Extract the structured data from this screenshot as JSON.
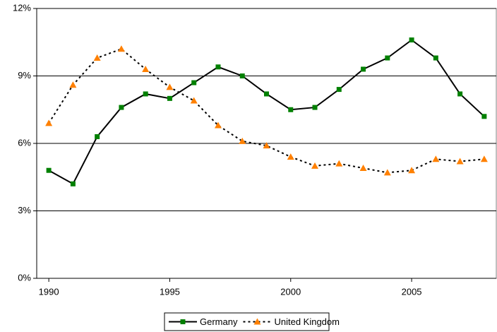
{
  "chart_data": {
    "type": "line",
    "x": [
      1990,
      1991,
      1992,
      1993,
      1994,
      1995,
      1996,
      1997,
      1998,
      1999,
      2000,
      2001,
      2002,
      2003,
      2004,
      2005,
      2006,
      2007,
      2008
    ],
    "series": [
      {
        "name": "Germany",
        "color": "#008000",
        "line_color": "#000000",
        "dash": "solid",
        "marker": "square",
        "values": [
          4.8,
          4.2,
          6.3,
          7.6,
          8.2,
          8.0,
          8.7,
          9.4,
          9.0,
          8.2,
          7.5,
          7.6,
          8.4,
          9.3,
          9.8,
          10.6,
          9.8,
          8.2,
          7.2
        ]
      },
      {
        "name": "United Kingdom",
        "color": "#ff8000",
        "line_color": "#000000",
        "dash": "dotted",
        "marker": "triangle",
        "values": [
          6.9,
          8.6,
          9.8,
          10.2,
          9.3,
          8.5,
          7.9,
          6.8,
          6.1,
          5.9,
          5.4,
          5.0,
          5.1,
          4.9,
          4.7,
          4.8,
          5.3,
          5.2,
          5.3
        ]
      }
    ],
    "xlim": [
      1989.5,
      2008.5
    ],
    "xticks": [
      1990,
      1995,
      2000,
      2005
    ],
    "ylim": [
      0,
      12
    ],
    "yticks": [
      {
        "value": 0,
        "label": "0%"
      },
      {
        "value": 3,
        "label": "3%"
      },
      {
        "value": 6,
        "label": "6%"
      },
      {
        "value": 9,
        "label": "9%"
      },
      {
        "value": 12,
        "label": "12%"
      }
    ],
    "grid": true,
    "legend": "bottom"
  }
}
